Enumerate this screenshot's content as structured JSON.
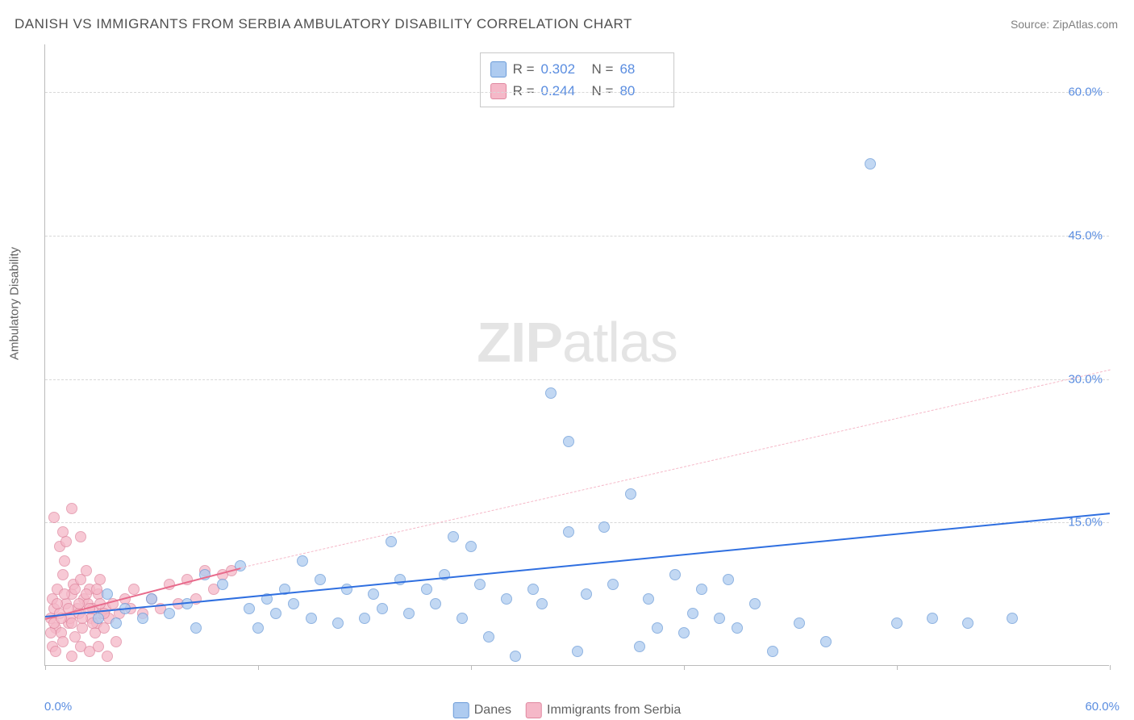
{
  "chart": {
    "type": "scatter",
    "title": "DANISH VS IMMIGRANTS FROM SERBIA AMBULATORY DISABILITY CORRELATION CHART",
    "source": "Source: ZipAtlas.com",
    "ylabel": "Ambulatory Disability",
    "watermark_bold": "ZIP",
    "watermark_light": "atlas",
    "xlim": [
      0,
      60
    ],
    "ylim": [
      0,
      65
    ],
    "xlim_left_label": "0.0%",
    "xlim_right_label": "60.0%",
    "yticks": [
      15.0,
      30.0,
      45.0,
      60.0
    ],
    "ytick_labels": [
      "15.0%",
      "30.0%",
      "45.0%",
      "60.0%"
    ],
    "xtick_positions": [
      0,
      12,
      24,
      36,
      48,
      60
    ],
    "grid_color": "#d8d8d8",
    "axis_color": "#bbbbbb",
    "background_color": "#ffffff",
    "title_fontsize": 17,
    "label_fontsize": 15,
    "tick_fontcolor": "#5a8de0",
    "point_radius": 7,
    "point_border_width": 1,
    "series": {
      "danes": {
        "label": "Danes",
        "fill": "#aecbf0",
        "stroke": "#6b9bd8",
        "fill_opacity": 0.75,
        "r_value": "0.302",
        "n_value": "68",
        "trend_solid": {
          "x1": 0,
          "y1": 5.2,
          "x2": 60,
          "y2": 16.0,
          "color": "#2f6fe0",
          "width": 2.5,
          "dash": false
        },
        "points": [
          [
            46.5,
            52.5
          ],
          [
            28.5,
            28.5
          ],
          [
            29.5,
            23.5
          ],
          [
            33.0,
            18.0
          ],
          [
            24.0,
            12.5
          ],
          [
            29.5,
            14.0
          ],
          [
            31.5,
            14.5
          ],
          [
            23.0,
            13.5
          ],
          [
            19.5,
            13.0
          ],
          [
            14.5,
            11.0
          ],
          [
            13.5,
            8.0
          ],
          [
            11.0,
            10.5
          ],
          [
            11.5,
            6.0
          ],
          [
            12.5,
            7.0
          ],
          [
            10.0,
            8.5
          ],
          [
            9.0,
            9.5
          ],
          [
            8.0,
            6.5
          ],
          [
            7.0,
            5.5
          ],
          [
            6.0,
            7.0
          ],
          [
            5.5,
            5.0
          ],
          [
            4.5,
            6.0
          ],
          [
            4.0,
            4.5
          ],
          [
            3.5,
            7.5
          ],
          [
            3.0,
            5.0
          ],
          [
            15.5,
            9.0
          ],
          [
            17.0,
            8.0
          ],
          [
            18.5,
            7.5
          ],
          [
            20.0,
            9.0
          ],
          [
            21.5,
            8.0
          ],
          [
            22.5,
            9.5
          ],
          [
            24.5,
            8.5
          ],
          [
            26.0,
            7.0
          ],
          [
            27.5,
            8.0
          ],
          [
            28.0,
            6.5
          ],
          [
            30.5,
            7.5
          ],
          [
            32.0,
            8.5
          ],
          [
            34.0,
            7.0
          ],
          [
            35.5,
            9.5
          ],
          [
            37.0,
            8.0
          ],
          [
            38.5,
            9.0
          ],
          [
            40.0,
            6.5
          ],
          [
            41.0,
            1.5
          ],
          [
            26.5,
            1.0
          ],
          [
            30.0,
            1.5
          ],
          [
            33.5,
            2.0
          ],
          [
            36.5,
            5.5
          ],
          [
            38.0,
            5.0
          ],
          [
            39.0,
            4.0
          ],
          [
            42.5,
            4.5
          ],
          [
            44.0,
            2.5
          ],
          [
            48.0,
            4.5
          ],
          [
            50.0,
            5.0
          ],
          [
            52.0,
            4.5
          ],
          [
            54.5,
            5.0
          ],
          [
            25.0,
            3.0
          ],
          [
            16.5,
            4.5
          ],
          [
            18.0,
            5.0
          ],
          [
            19.0,
            6.0
          ],
          [
            20.5,
            5.5
          ],
          [
            12.0,
            4.0
          ],
          [
            13.0,
            5.5
          ],
          [
            14.0,
            6.5
          ],
          [
            15.0,
            5.0
          ],
          [
            22.0,
            6.5
          ],
          [
            23.5,
            5.0
          ],
          [
            34.5,
            4.0
          ],
          [
            36.0,
            3.5
          ],
          [
            8.5,
            4.0
          ]
        ]
      },
      "serbia": {
        "label": "Immigrants from Serbia",
        "fill": "#f5b8c8",
        "stroke": "#e088a0",
        "fill_opacity": 0.75,
        "r_value": "0.244",
        "n_value": "80",
        "trend_solid": {
          "x1": 0,
          "y1": 5.0,
          "x2": 11,
          "y2": 10.3,
          "color": "#e86b8c",
          "width": 2,
          "dash": false
        },
        "trend_dashed": {
          "x1": 11,
          "y1": 10.3,
          "x2": 60,
          "y2": 31.0,
          "color": "#f5b8c8",
          "width": 1,
          "dash": true
        },
        "points": [
          [
            0.3,
            5.0
          ],
          [
            0.5,
            6.0
          ],
          [
            0.4,
            7.0
          ],
          [
            0.6,
            4.0
          ],
          [
            0.8,
            5.5
          ],
          [
            0.7,
            8.0
          ],
          [
            1.0,
            9.5
          ],
          [
            0.9,
            3.5
          ],
          [
            1.2,
            6.5
          ],
          [
            1.1,
            11.0
          ],
          [
            1.3,
            4.5
          ],
          [
            1.5,
            7.5
          ],
          [
            1.4,
            5.0
          ],
          [
            1.6,
            8.5
          ],
          [
            1.8,
            6.0
          ],
          [
            1.7,
            3.0
          ],
          [
            2.0,
            9.0
          ],
          [
            1.9,
            5.5
          ],
          [
            2.2,
            7.0
          ],
          [
            2.1,
            4.0
          ],
          [
            2.4,
            6.5
          ],
          [
            2.3,
            10.0
          ],
          [
            2.6,
            5.0
          ],
          [
            2.5,
            8.0
          ],
          [
            2.8,
            3.5
          ],
          [
            2.7,
            6.0
          ],
          [
            3.0,
            7.5
          ],
          [
            2.9,
            4.5
          ],
          [
            3.2,
            5.5
          ],
          [
            3.1,
            9.0
          ],
          [
            3.4,
            6.0
          ],
          [
            3.3,
            4.0
          ],
          [
            0.5,
            15.5
          ],
          [
            1.0,
            14.0
          ],
          [
            1.5,
            16.5
          ],
          [
            2.0,
            13.5
          ],
          [
            0.8,
            12.5
          ],
          [
            1.2,
            13.0
          ],
          [
            0.4,
            2.0
          ],
          [
            0.6,
            1.5
          ],
          [
            1.0,
            2.5
          ],
          [
            1.5,
            1.0
          ],
          [
            2.0,
            2.0
          ],
          [
            2.5,
            1.5
          ],
          [
            3.0,
            2.0
          ],
          [
            3.5,
            1.0
          ],
          [
            4.0,
            2.5
          ],
          [
            3.6,
            5.0
          ],
          [
            3.8,
            6.5
          ],
          [
            4.2,
            5.5
          ],
          [
            4.5,
            7.0
          ],
          [
            4.8,
            6.0
          ],
          [
            5.0,
            8.0
          ],
          [
            5.5,
            5.5
          ],
          [
            6.0,
            7.0
          ],
          [
            6.5,
            6.0
          ],
          [
            7.0,
            8.5
          ],
          [
            7.5,
            6.5
          ],
          [
            8.0,
            9.0
          ],
          [
            8.5,
            7.0
          ],
          [
            9.0,
            10.0
          ],
          [
            9.5,
            8.0
          ],
          [
            10.0,
            9.5
          ],
          [
            10.5,
            10.0
          ],
          [
            0.3,
            3.5
          ],
          [
            0.5,
            4.5
          ],
          [
            0.7,
            6.5
          ],
          [
            0.9,
            5.0
          ],
          [
            1.1,
            7.5
          ],
          [
            1.3,
            6.0
          ],
          [
            1.5,
            4.5
          ],
          [
            1.7,
            8.0
          ],
          [
            1.9,
            6.5
          ],
          [
            2.1,
            5.0
          ],
          [
            2.3,
            7.5
          ],
          [
            2.5,
            6.0
          ],
          [
            2.7,
            4.5
          ],
          [
            2.9,
            8.0
          ],
          [
            3.1,
            6.5
          ],
          [
            3.3,
            5.5
          ]
        ]
      }
    },
    "stats_legend": {
      "r_prefix": "R =",
      "n_prefix": "N ="
    }
  }
}
